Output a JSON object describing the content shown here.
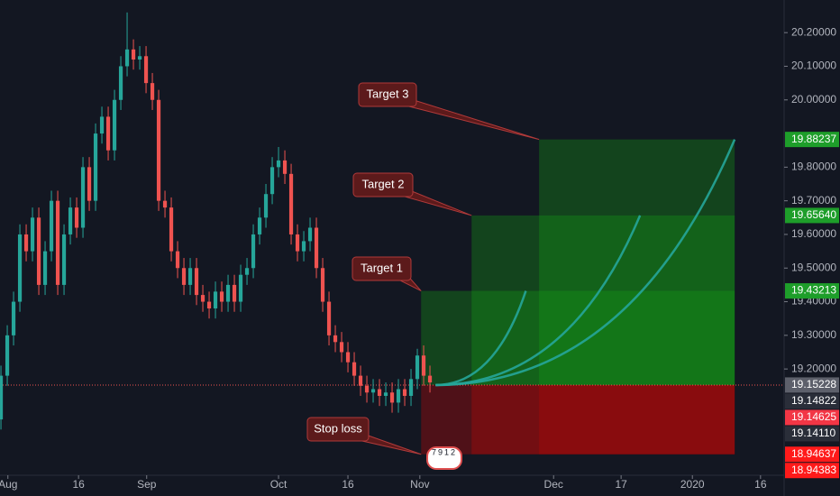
{
  "chart_data": {
    "type": "candlestick",
    "up_color": "#26a69a",
    "down_color": "#ef5350",
    "xlim": [
      -0.15,
      124.14
    ],
    "xticks": [
      {
        "value": 1.1,
        "label": "Aug"
      },
      {
        "value": 12.3,
        "label": "16"
      },
      {
        "value": 23.1,
        "label": "Sep"
      },
      {
        "value": 44,
        "label": "Oct"
      },
      {
        "value": 55,
        "label": "16"
      },
      {
        "value": 66.4,
        "label": "Nov"
      },
      {
        "value": 87.6,
        "label": "Dec"
      },
      {
        "value": 98.3,
        "label": "17"
      },
      {
        "value": 109.6,
        "label": "2020"
      },
      {
        "value": 120.4,
        "label": "16"
      }
    ],
    "ylim": [
      18.884,
      20.297
    ],
    "yticks": [
      {
        "value": 20.2,
        "label": "20.20000"
      },
      {
        "value": 20.1,
        "label": "20.10000"
      },
      {
        "value": 20.0,
        "label": "20.00000"
      },
      {
        "value": 19.8,
        "label": "19.80000"
      },
      {
        "value": 19.7,
        "label": "19.70000"
      },
      {
        "value": 19.6,
        "label": "19.60000"
      },
      {
        "value": 19.5,
        "label": "19.50000"
      },
      {
        "value": 19.4,
        "label": "19.40000"
      },
      {
        "value": 19.3,
        "label": "19.30000"
      },
      {
        "value": 19.2,
        "label": "19.20000"
      }
    ],
    "candles": [
      [
        19.05,
        19.21,
        19.02,
        19.18
      ],
      [
        19.18,
        19.33,
        19.15,
        19.3
      ],
      [
        19.3,
        19.43,
        19.27,
        19.4
      ],
      [
        19.4,
        19.63,
        19.37,
        19.6
      ],
      [
        19.6,
        19.63,
        19.52,
        19.55
      ],
      [
        19.55,
        19.68,
        19.52,
        19.65
      ],
      [
        19.65,
        19.68,
        19.42,
        19.45
      ],
      [
        19.45,
        19.58,
        19.42,
        19.55
      ],
      [
        19.55,
        19.73,
        19.52,
        19.7
      ],
      [
        19.7,
        19.73,
        19.42,
        19.45
      ],
      [
        19.45,
        19.63,
        19.42,
        19.6
      ],
      [
        19.6,
        19.71,
        19.57,
        19.68
      ],
      [
        19.68,
        19.71,
        19.59,
        19.62
      ],
      [
        19.62,
        19.83,
        19.59,
        19.8
      ],
      [
        19.8,
        19.83,
        19.67,
        19.7
      ],
      [
        19.7,
        19.93,
        19.67,
        19.9
      ],
      [
        19.9,
        19.98,
        19.87,
        19.95
      ],
      [
        19.95,
        19.98,
        19.82,
        19.85
      ],
      [
        19.85,
        20.03,
        19.82,
        20.0
      ],
      [
        20.0,
        20.13,
        19.97,
        20.1
      ],
      [
        20.1,
        20.26,
        20.07,
        20.15
      ],
      [
        20.15,
        20.18,
        20.09,
        20.12
      ],
      [
        20.12,
        20.16,
        20.09,
        20.13
      ],
      [
        20.13,
        20.16,
        20.02,
        20.05
      ],
      [
        20.05,
        20.08,
        19.97,
        20.0
      ],
      [
        20.0,
        20.03,
        19.67,
        19.7
      ],
      [
        19.7,
        19.73,
        19.65,
        19.68
      ],
      [
        19.68,
        19.71,
        19.52,
        19.55
      ],
      [
        19.55,
        19.58,
        19.47,
        19.5
      ],
      [
        19.5,
        19.53,
        19.42,
        19.45
      ],
      [
        19.45,
        19.53,
        19.42,
        19.5
      ],
      [
        19.5,
        19.53,
        19.39,
        19.42
      ],
      [
        19.42,
        19.45,
        19.37,
        19.4
      ],
      [
        19.4,
        19.43,
        19.35,
        19.38
      ],
      [
        19.38,
        19.46,
        19.35,
        19.43
      ],
      [
        19.43,
        19.46,
        19.37,
        19.4
      ],
      [
        19.4,
        19.48,
        19.37,
        19.45
      ],
      [
        19.45,
        19.48,
        19.37,
        19.4
      ],
      [
        19.4,
        19.51,
        19.37,
        19.48
      ],
      [
        19.48,
        19.53,
        19.45,
        19.5
      ],
      [
        19.5,
        19.63,
        19.47,
        19.6
      ],
      [
        19.6,
        19.68,
        19.57,
        19.65
      ],
      [
        19.65,
        19.75,
        19.62,
        19.72
      ],
      [
        19.72,
        19.83,
        19.69,
        19.8
      ],
      [
        19.8,
        19.86,
        19.77,
        19.82
      ],
      [
        19.82,
        19.85,
        19.75,
        19.78
      ],
      [
        19.78,
        19.81,
        19.57,
        19.6
      ],
      [
        19.6,
        19.63,
        19.52,
        19.55
      ],
      [
        19.55,
        19.61,
        19.52,
        19.58
      ],
      [
        19.58,
        19.65,
        19.55,
        19.62
      ],
      [
        19.62,
        19.65,
        19.47,
        19.5
      ],
      [
        19.5,
        19.53,
        19.37,
        19.4
      ],
      [
        19.4,
        19.43,
        19.27,
        19.3
      ],
      [
        19.3,
        19.33,
        19.25,
        19.28
      ],
      [
        19.28,
        19.31,
        19.22,
        19.25
      ],
      [
        19.25,
        19.28,
        19.19,
        19.22
      ],
      [
        19.22,
        19.25,
        19.15,
        19.18
      ],
      [
        19.18,
        19.21,
        19.12,
        19.15
      ],
      [
        19.15,
        19.18,
        19.1,
        19.13
      ],
      [
        19.13,
        19.17,
        19.1,
        19.14
      ],
      [
        19.14,
        19.17,
        19.09,
        19.12
      ],
      [
        19.12,
        19.16,
        19.09,
        19.13
      ],
      [
        19.13,
        19.16,
        19.07,
        19.1
      ],
      [
        19.1,
        19.17,
        19.07,
        19.14
      ],
      [
        19.14,
        19.17,
        19.09,
        19.12
      ],
      [
        19.12,
        19.2,
        19.09,
        19.17
      ],
      [
        19.17,
        19.26,
        19.14,
        19.24
      ],
      [
        19.24,
        19.27,
        19.15,
        19.18
      ],
      [
        19.18,
        19.21,
        19.13,
        19.16
      ]
    ],
    "position": {
      "entry": 19.15228,
      "stop": 18.94637,
      "x_end": 116.3,
      "curve_start_x": 68.9,
      "stop_label": "Stop loss",
      "targets": [
        {
          "label": "Target 1",
          "price": 19.43213,
          "x_start": 66.6,
          "curve_end_x": 83.2
        },
        {
          "label": "Target 2",
          "price": 19.6564,
          "x_start": 74.6,
          "curve_end_x": 101.3
        },
        {
          "label": "Target 3",
          "price": 19.88237,
          "x_start": 85.3,
          "curve_end_x": 116.3
        }
      ]
    },
    "event_badge": "7912",
    "price_labels": [
      {
        "value": 19.88237,
        "label": "19.88237",
        "color": "#1e9e2a"
      },
      {
        "value": 19.6564,
        "label": "19.65640",
        "color": "#1e9e2a"
      },
      {
        "value": 19.43213,
        "label": "19.43213",
        "color": "#1e9e2a"
      },
      {
        "value": 19.15228,
        "label": "19.15228",
        "color": "#5d606b"
      },
      {
        "value": 19.14822,
        "label": "19.14822",
        "color": "#2a2e39"
      },
      {
        "value": 19.14625,
        "label": "19.14625",
        "color": "#f23645"
      },
      {
        "value": 19.1411,
        "label": "19.14110",
        "color": "#2a2e39"
      },
      {
        "value": 18.94637,
        "label": "18.94637",
        "color": "#ff1a1a"
      },
      {
        "value": 18.94383,
        "label": "18.94383",
        "color": "#ff1a1a"
      }
    ]
  }
}
